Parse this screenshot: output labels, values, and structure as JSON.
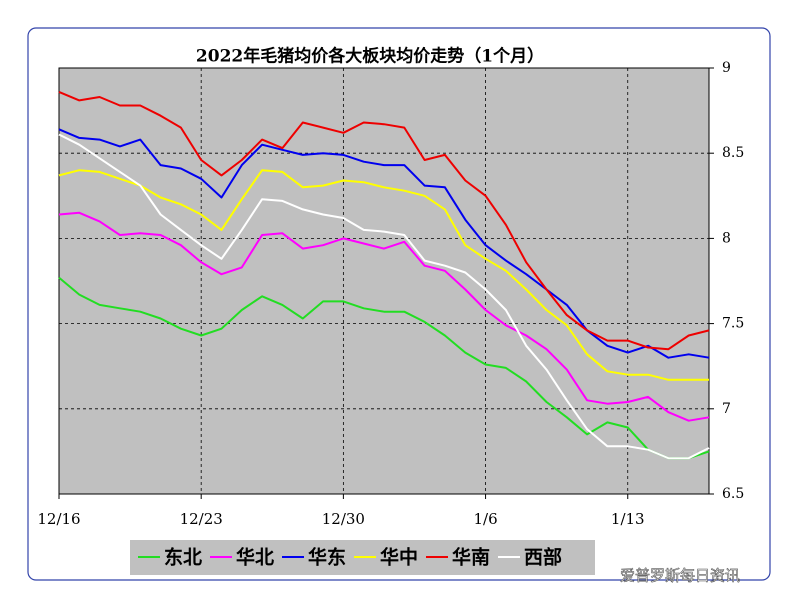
{
  "chart_data": {
    "type": "line",
    "title": "2022年毛猪均价各大板块均价走势（1个月）",
    "source": "爱普罗斯每日资讯",
    "categories": [
      "12/16",
      null,
      null,
      null,
      null,
      null,
      null,
      "12/23",
      null,
      null,
      null,
      null,
      null,
      null,
      "12/30",
      null,
      null,
      null,
      null,
      null,
      null,
      "1/6",
      null,
      null,
      null,
      null,
      null,
      null,
      "1/13",
      null,
      null,
      null,
      null
    ],
    "ylim": [
      6.5,
      9
    ],
    "yticks": [
      6.5,
      7,
      7.5,
      8,
      8.5,
      9
    ],
    "grid": true,
    "series": [
      {
        "name": "东北",
        "color": "#22dd22",
        "values": [
          7.77,
          7.67,
          7.61,
          7.59,
          7.57,
          7.53,
          7.47,
          7.43,
          7.47,
          7.58,
          7.66,
          7.61,
          7.53,
          7.63,
          7.63,
          7.59,
          7.57,
          7.57,
          7.51,
          7.43,
          7.33,
          7.26,
          7.24,
          7.16,
          7.04,
          6.95,
          6.85,
          6.92,
          6.89,
          6.76,
          6.71,
          6.71,
          6.75
        ]
      },
      {
        "name": "华北",
        "color": "#ff00ff",
        "values": [
          8.14,
          8.15,
          8.1,
          8.02,
          8.03,
          8.02,
          7.96,
          7.86,
          7.79,
          7.83,
          8.02,
          8.03,
          7.94,
          7.96,
          8.0,
          7.97,
          7.94,
          7.98,
          7.84,
          7.81,
          7.7,
          7.58,
          7.49,
          7.43,
          7.35,
          7.23,
          7.05,
          7.03,
          7.04,
          7.07,
          6.98,
          6.93,
          6.95
        ]
      },
      {
        "name": "华东",
        "color": "#0000ee",
        "values": [
          8.64,
          8.59,
          8.58,
          8.54,
          8.58,
          8.43,
          8.41,
          8.35,
          8.24,
          8.43,
          8.55,
          8.52,
          8.49,
          8.5,
          8.49,
          8.45,
          8.43,
          8.43,
          8.31,
          8.3,
          8.11,
          7.96,
          7.87,
          7.79,
          7.7,
          7.61,
          7.46,
          7.37,
          7.33,
          7.37,
          7.3,
          7.32,
          7.3
        ]
      },
      {
        "name": "华中",
        "color": "#ffff00",
        "values": [
          8.37,
          8.4,
          8.39,
          8.35,
          8.31,
          8.24,
          8.2,
          8.14,
          8.05,
          8.23,
          8.4,
          8.39,
          8.3,
          8.31,
          8.34,
          8.33,
          8.3,
          8.28,
          8.25,
          8.17,
          7.96,
          7.88,
          7.81,
          7.7,
          7.58,
          7.49,
          7.32,
          7.22,
          7.2,
          7.2,
          7.17,
          7.17,
          7.17
        ]
      },
      {
        "name": "华南",
        "color": "#ee0000",
        "values": [
          8.86,
          8.81,
          8.83,
          8.78,
          8.78,
          8.72,
          8.65,
          8.46,
          8.37,
          8.46,
          8.58,
          8.53,
          8.68,
          8.65,
          8.62,
          8.68,
          8.67,
          8.65,
          8.46,
          8.49,
          8.34,
          8.25,
          8.08,
          7.86,
          7.7,
          7.55,
          7.46,
          7.4,
          7.4,
          7.36,
          7.35,
          7.43,
          7.46
        ]
      },
      {
        "name": "西部",
        "color": "#ffffff",
        "values": [
          8.61,
          8.55,
          8.47,
          8.39,
          8.31,
          8.14,
          8.05,
          7.96,
          7.88,
          8.05,
          8.23,
          8.22,
          8.17,
          8.14,
          8.12,
          8.05,
          8.04,
          8.02,
          7.87,
          7.84,
          7.8,
          7.7,
          7.58,
          7.37,
          7.23,
          7.05,
          6.88,
          6.78,
          6.78,
          6.76,
          6.71,
          6.71,
          6.77
        ]
      }
    ]
  }
}
